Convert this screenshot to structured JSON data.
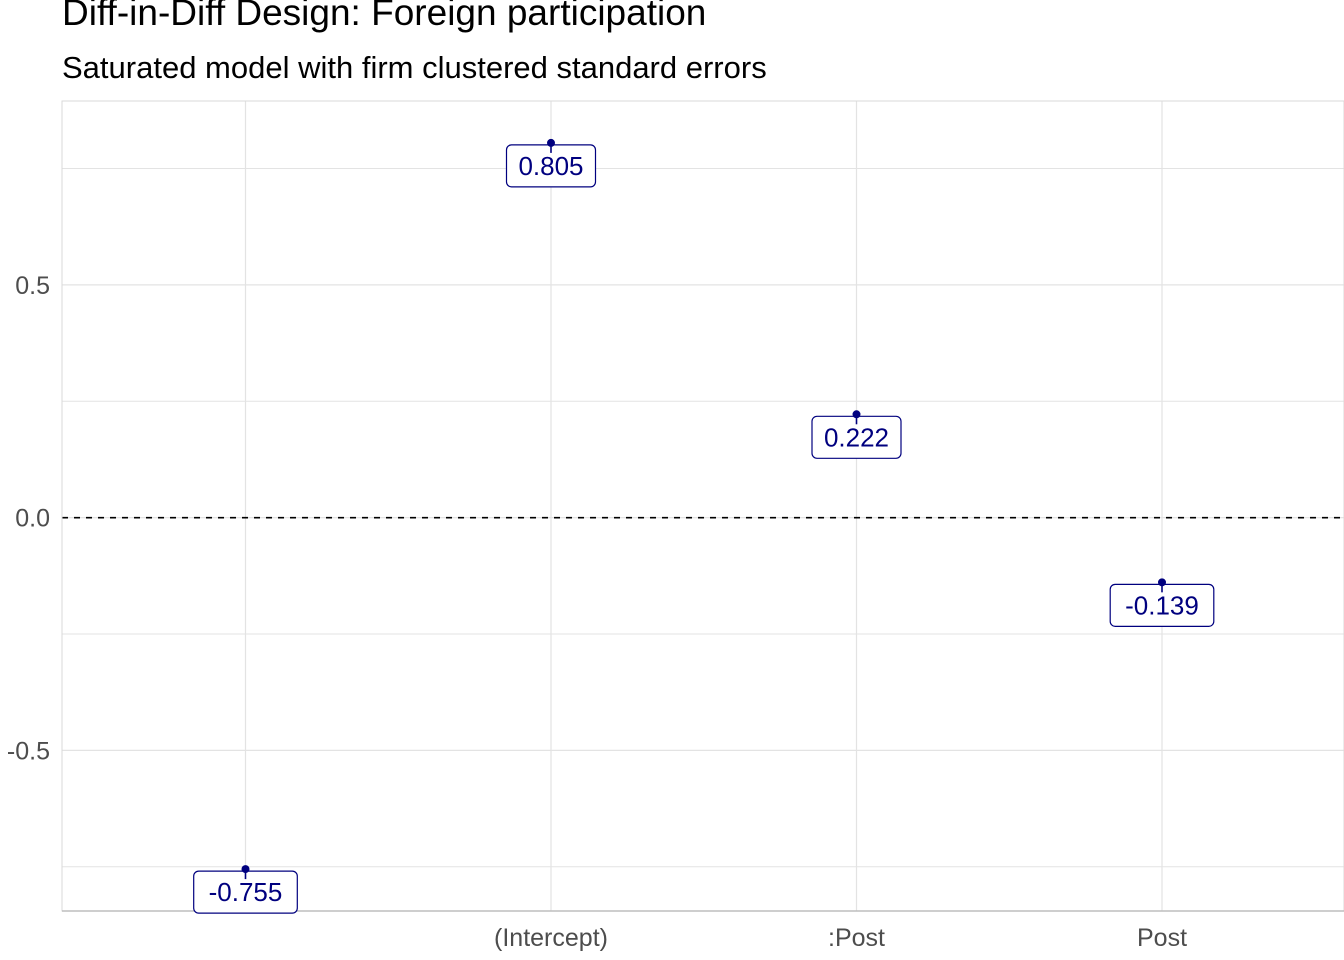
{
  "title": "Diff-in-Diff Design: Foreign participation",
  "subtitle": "Saturated model with firm clustered standard errors",
  "colors": {
    "label": "#00007f",
    "point": "#00007f",
    "grid": "#e3e3e3",
    "axis": "#bdbdbd",
    "zero_line": "#000000"
  },
  "chart_data": {
    "type": "scatter",
    "title": "Diff-in-Diff Design: Foreign participation",
    "subtitle": "Saturated model with firm clustered standard errors",
    "xlabel": "",
    "ylabel": "",
    "categories": [
      "",
      "(Intercept)",
      ":Post",
      "Post"
    ],
    "values": [
      -0.755,
      0.805,
      0.222,
      -0.139
    ],
    "labels": [
      "-0.755",
      "0.805",
      "0.222",
      "-0.139"
    ],
    "ylim": [
      -0.845,
      0.895
    ],
    "yticks": [
      -0.5,
      0.0,
      0.5
    ],
    "ytick_labels": [
      "-0.5",
      "0.0",
      "0.5"
    ],
    "reference_line": {
      "y": 0,
      "style": "dashed"
    },
    "grid": true
  }
}
